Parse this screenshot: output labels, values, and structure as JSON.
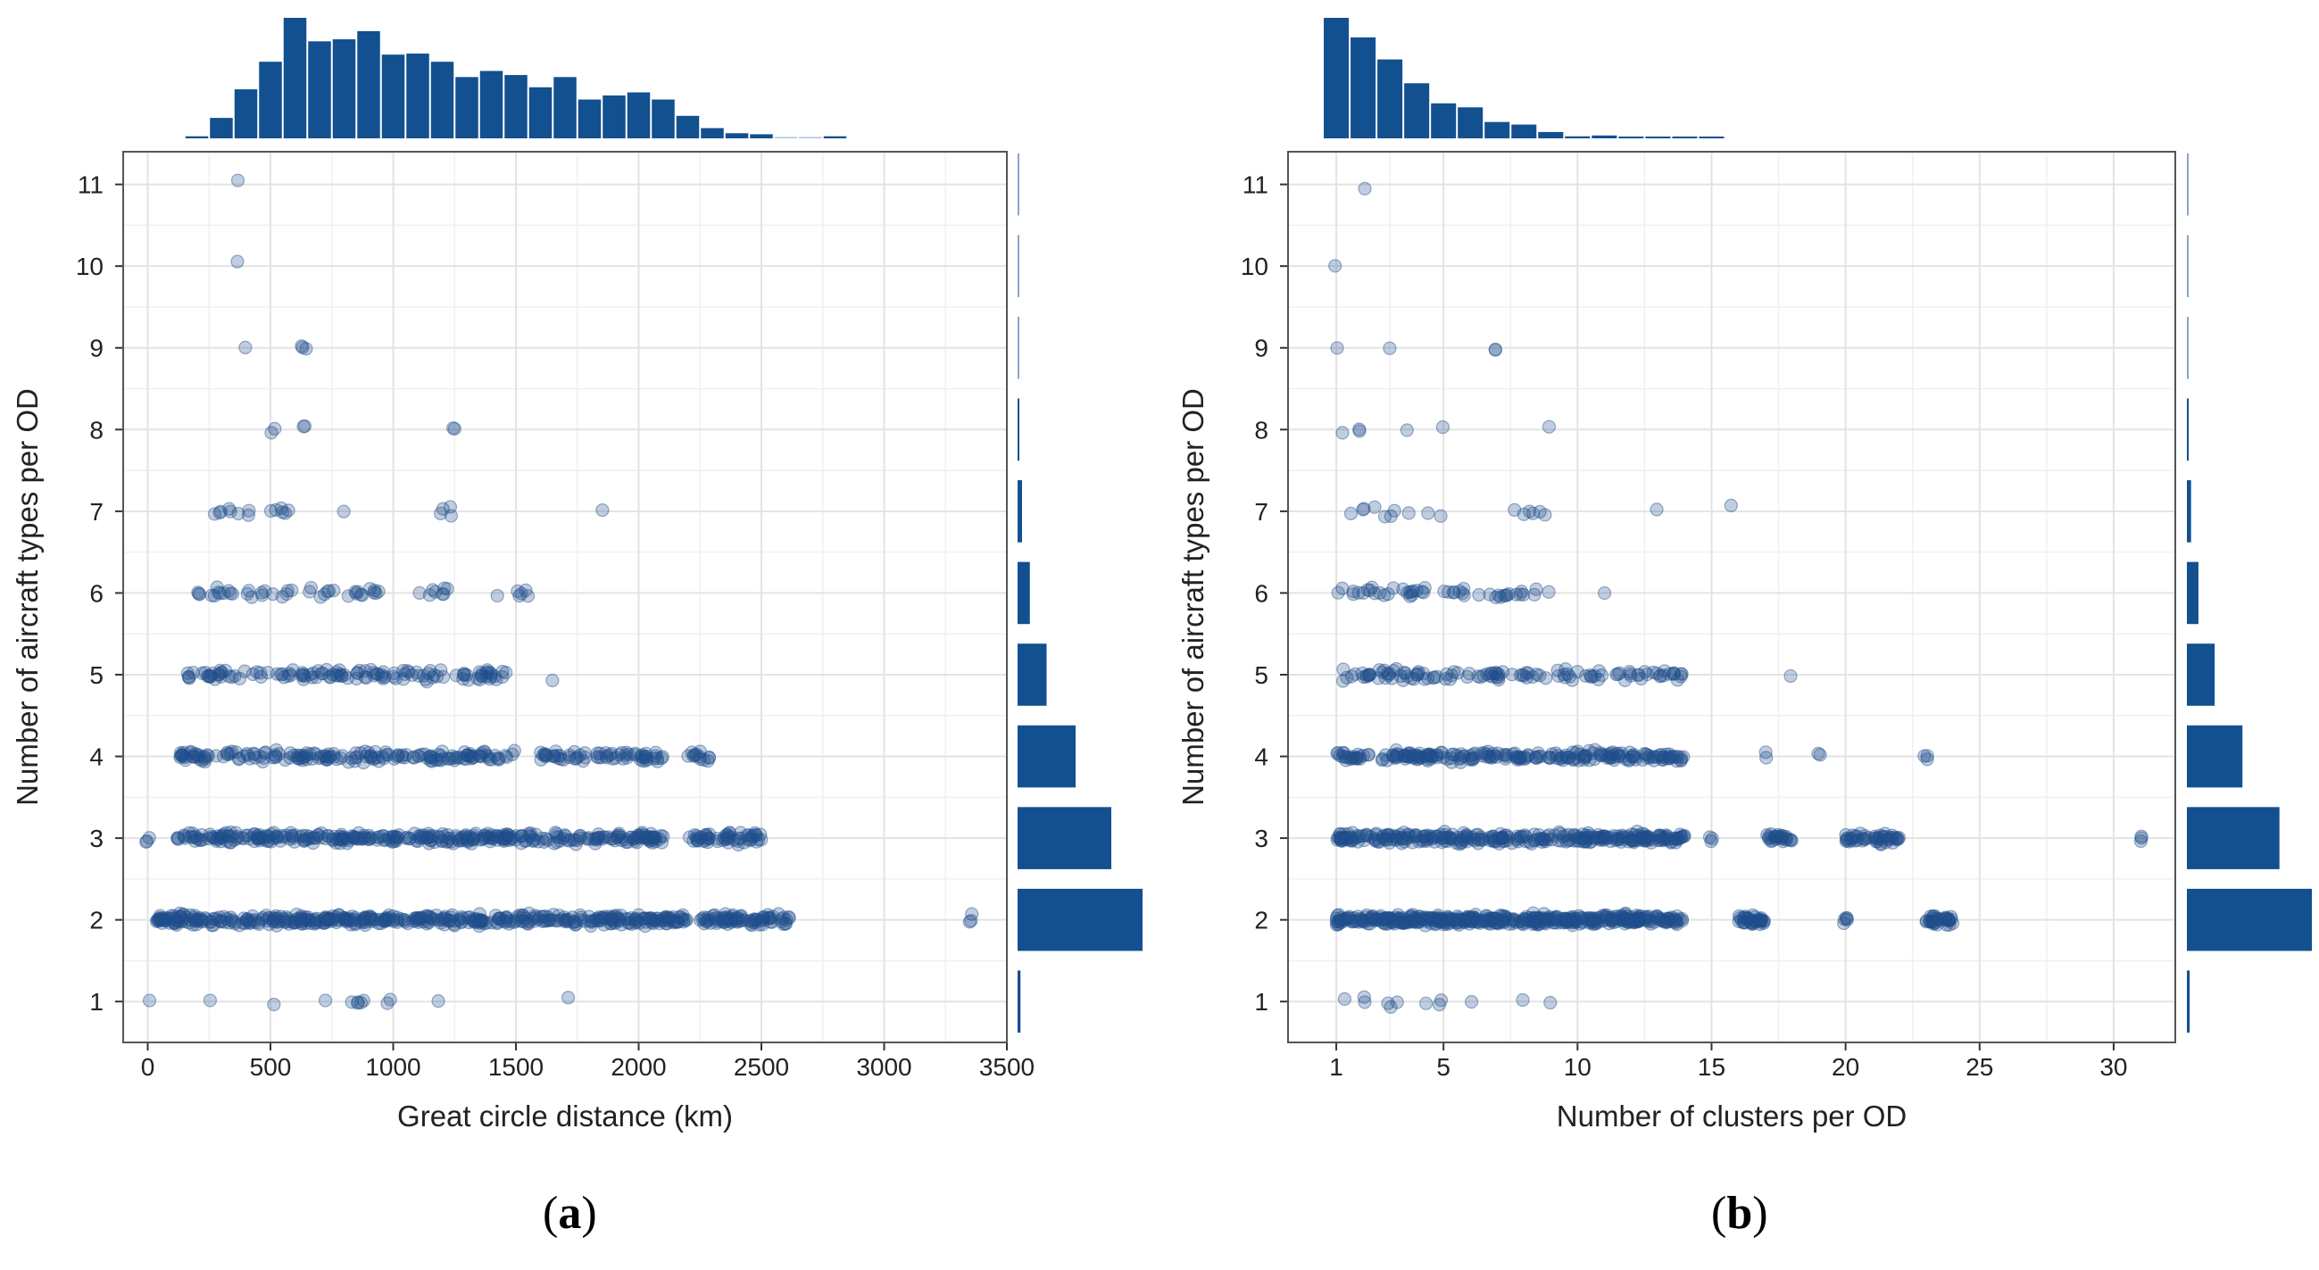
{
  "figure": {
    "accent_color": "#12508f",
    "point_color": "#1f4e8c",
    "captions": [
      {
        "open": "(",
        "letter": "a",
        "close": ")"
      },
      {
        "open": "(",
        "letter": "b",
        "close": ")"
      }
    ]
  },
  "chart_data": [
    {
      "type": "scatter",
      "title": "",
      "xlabel": "Great circle distance (km)",
      "ylabel": "Number of aircraft types per OD",
      "xlim": [
        -100,
        3500
      ],
      "ylim": [
        0.5,
        11.4
      ],
      "xticks": [
        0,
        500,
        1000,
        1500,
        2000,
        2500,
        3000,
        3500
      ],
      "yticks": [
        1,
        2,
        3,
        4,
        5,
        6,
        7,
        8,
        9,
        10,
        11
      ],
      "grid": true,
      "series": [
        {
          "y": 11,
          "count": 1,
          "x_ranges": [
            [
              370,
              370
            ]
          ]
        },
        {
          "y": 10,
          "count": 1,
          "x_ranges": [
            [
              370,
              370
            ]
          ]
        },
        {
          "y": 9,
          "count": 4,
          "x_ranges": [
            [
              400,
              400
            ],
            [
              620,
              650
            ]
          ]
        },
        {
          "y": 8,
          "count": 6,
          "x_ranges": [
            [
              500,
              520
            ],
            [
              630,
              650
            ],
            [
              1250,
              1250
            ]
          ]
        },
        {
          "y": 7,
          "count": 20,
          "x_ranges": [
            [
              250,
              420
            ],
            [
              470,
              600
            ],
            [
              790,
              800
            ],
            [
              1150,
              1250
            ],
            [
              1850,
              1850
            ]
          ]
        },
        {
          "y": 6,
          "count": 55,
          "x_ranges": [
            [
              150,
              600
            ],
            [
              650,
              1000
            ],
            [
              1100,
              1250
            ],
            [
              1420,
              1550
            ]
          ]
        },
        {
          "y": 5,
          "count": 130,
          "x_ranges": [
            [
              150,
              1500
            ],
            [
              1650,
              1650
            ]
          ]
        },
        {
          "y": 4,
          "count": 260,
          "x_ranges": [
            [
              130,
              1500
            ],
            [
              1600,
              2100
            ],
            [
              2200,
              2300
            ]
          ]
        },
        {
          "y": 3,
          "count": 420,
          "x_ranges": [
            [
              0,
              0
            ],
            [
              120,
              2100
            ],
            [
              2200,
              2500
            ]
          ]
        },
        {
          "y": 2,
          "count": 560,
          "x_ranges": [
            [
              30,
              2200
            ],
            [
              2250,
              2620
            ],
            [
              3350,
              3350
            ]
          ]
        },
        {
          "y": 1,
          "count": 13,
          "x_ranges": [
            [
              10,
              10
            ],
            [
              250,
              270
            ],
            [
              510,
              520
            ],
            [
              720,
              720
            ],
            [
              820,
              990
            ],
            [
              1170,
              1190
            ],
            [
              1700,
              1720
            ]
          ]
        }
      ],
      "marginal_x": {
        "bin_width_km": 100,
        "bins_start_km": 150,
        "counts": [
          2,
          20,
          48,
          75,
          118,
          95,
          97,
          105,
          82,
          83,
          75,
          60,
          66,
          62,
          50,
          60,
          38,
          42,
          45,
          38,
          22,
          10,
          5,
          4,
          0,
          0,
          2
        ]
      },
      "marginal_y": {
        "categories": [
          11,
          10,
          9,
          8,
          7,
          6,
          5,
          4,
          3,
          2,
          1
        ],
        "counts": [
          1,
          1,
          4,
          6,
          20,
          55,
          130,
          260,
          420,
          560,
          13
        ]
      }
    },
    {
      "type": "scatter",
      "title": "",
      "xlabel": "Number of clusters per OD",
      "ylabel": "Number of aircraft types per OD",
      "xlim": [
        -0.8,
        32.3
      ],
      "ylim": [
        0.5,
        11.4
      ],
      "xticks": [
        1,
        5,
        10,
        15,
        20,
        25,
        30
      ],
      "yticks": [
        1,
        2,
        3,
        4,
        5,
        6,
        7,
        8,
        9,
        10,
        11
      ],
      "grid": true,
      "series": [
        {
          "y": 11,
          "count": 1,
          "x_ranges": [
            [
              2,
              2
            ]
          ]
        },
        {
          "y": 10,
          "count": 1,
          "x_ranges": [
            [
              1,
              1
            ]
          ]
        },
        {
          "y": 9,
          "count": 4,
          "x_ranges": [
            [
              1,
              1
            ],
            [
              3,
              3
            ],
            [
              7,
              7
            ]
          ]
        },
        {
          "y": 8,
          "count": 6,
          "x_ranges": [
            [
              1,
              2
            ],
            [
              3,
              4
            ],
            [
              5,
              5
            ],
            [
              9,
              9
            ]
          ]
        },
        {
          "y": 7,
          "count": 18,
          "x_ranges": [
            [
              1,
              9
            ],
            [
              13,
              13
            ],
            [
              15,
              16
            ]
          ]
        },
        {
          "y": 6,
          "count": 50,
          "x_ranges": [
            [
              1,
              9
            ],
            [
              11,
              11
            ]
          ]
        },
        {
          "y": 5,
          "count": 120,
          "x_ranges": [
            [
              1,
              14
            ],
            [
              18,
              18
            ]
          ]
        },
        {
          "y": 4,
          "count": 240,
          "x_ranges": [
            [
              1,
              14
            ],
            [
              17,
              17
            ],
            [
              19,
              19
            ],
            [
              23,
              23
            ]
          ]
        },
        {
          "y": 3,
          "count": 400,
          "x_ranges": [
            [
              1,
              14
            ],
            [
              15,
              15
            ],
            [
              17,
              18
            ],
            [
              20,
              22
            ],
            [
              31,
              31
            ]
          ]
        },
        {
          "y": 2,
          "count": 540,
          "x_ranges": [
            [
              1,
              14
            ],
            [
              16,
              17
            ],
            [
              20,
              20
            ],
            [
              23,
              24
            ]
          ]
        },
        {
          "y": 1,
          "count": 12,
          "x_ranges": [
            [
              1,
              5
            ],
            [
              6,
              6
            ],
            [
              8,
              8
            ],
            [
              9,
              9
            ]
          ]
        }
      ],
      "marginal_x": {
        "bin_width": 1,
        "bins_start": 0.5,
        "counts": [
          420,
          352,
          275,
          192,
          122,
          108,
          57,
          48,
          22,
          7,
          10,
          3,
          2,
          1,
          1
        ]
      },
      "marginal_y": {
        "categories": [
          11,
          10,
          9,
          8,
          7,
          6,
          5,
          4,
          3,
          2,
          1
        ],
        "counts": [
          1,
          1,
          4,
          6,
          18,
          50,
          120,
          240,
          400,
          540,
          12
        ]
      }
    }
  ]
}
